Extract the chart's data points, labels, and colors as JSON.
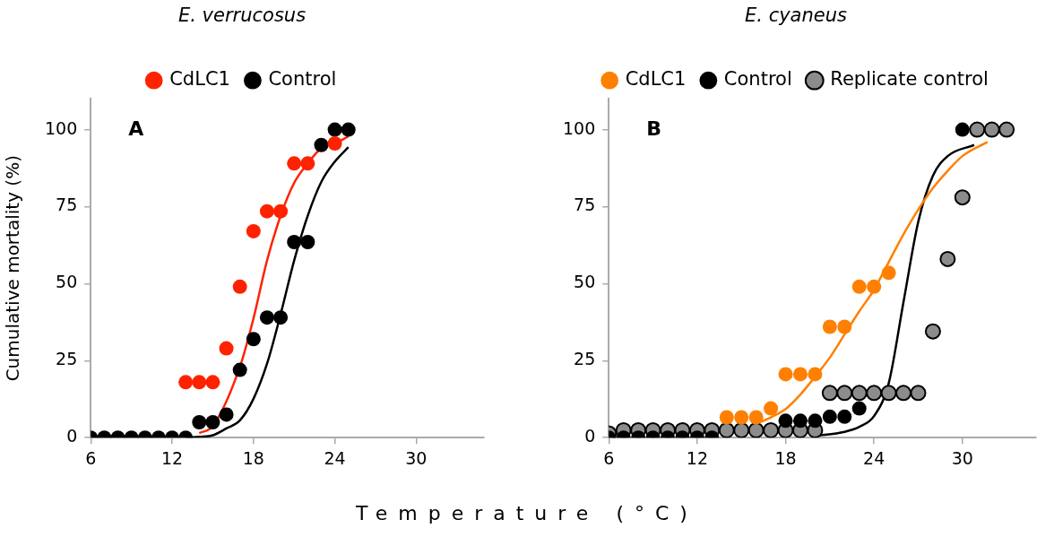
{
  "chart_data": [
    {
      "type": "scatter",
      "title": "E. verrucosus",
      "ylabel": "Cumulative mortality (%)",
      "xlabel": "Temperature (°C)",
      "annotations": [
        "A"
      ],
      "legend": "top",
      "grid": false,
      "marker": "circle",
      "xlim": [
        6,
        35
      ],
      "xticks": [
        6,
        12,
        18,
        24,
        30
      ],
      "ylim": [
        0,
        110
      ],
      "yticks": [
        0,
        25,
        50,
        75,
        100
      ],
      "series": [
        {
          "name": "CdLC1",
          "color": "#ff2200",
          "x": [
            13,
            14,
            15,
            16,
            17,
            18,
            19,
            20,
            21,
            22,
            24
          ],
          "values": [
            18,
            18,
            18,
            29,
            49,
            67,
            73.5,
            73.5,
            89,
            89,
            95.5
          ]
        },
        {
          "name": "Control",
          "color": "#000000",
          "x": [
            6,
            7,
            8,
            9,
            10,
            11,
            12,
            13,
            14,
            15,
            16,
            17,
            18,
            19,
            20,
            21,
            22,
            23,
            24,
            25
          ],
          "values": [
            0,
            0,
            0,
            0,
            0,
            0,
            0,
            0,
            5,
            5,
            7.5,
            22,
            32,
            39,
            39,
            63.5,
            63.5,
            95,
            100,
            100
          ]
        },
        {
          "type": "line",
          "color": "#ff2200",
          "marker": "none",
          "x": [
            14,
            15,
            17,
            18,
            19,
            20,
            21,
            22,
            23,
            24,
            25
          ],
          "values": [
            1.5,
            3.8,
            23,
            38.7,
            57.5,
            72,
            82.7,
            89,
            94,
            95.5,
            97.8
          ]
        },
        {
          "type": "line",
          "color": "#000000",
          "marker": "none",
          "x": [
            13,
            14,
            15,
            16,
            17,
            18,
            19,
            20,
            21,
            22,
            23,
            24,
            25
          ],
          "values": [
            0,
            0.3,
            0.8,
            3,
            5.6,
            12.6,
            24,
            40,
            57.5,
            72,
            83,
            89.6,
            94.3
          ]
        }
      ]
    },
    {
      "type": "scatter",
      "title": "E. cyaneus",
      "annotations": [
        "B"
      ],
      "legend": "top",
      "grid": false,
      "marker": "circle",
      "xlim": [
        6,
        35
      ],
      "xticks": [
        6,
        12,
        18,
        24,
        30
      ],
      "ylim": [
        0,
        110
      ],
      "yticks": [
        0,
        25,
        50,
        75,
        100
      ],
      "series": [
        {
          "name": "CdLC1",
          "color": "#ff8000",
          "x": [
            14,
            15,
            16,
            17,
            18,
            19,
            20,
            21,
            22,
            23,
            24,
            25
          ],
          "values": [
            6.6,
            6.6,
            6.6,
            9.5,
            20.6,
            20.6,
            20.6,
            36,
            36,
            49,
            49,
            53.5
          ]
        },
        {
          "name": "Control",
          "color": "#000000",
          "x": [
            6,
            7,
            8,
            9,
            10,
            11,
            12,
            13,
            18,
            19,
            20,
            21,
            22,
            23,
            30
          ],
          "values": [
            0,
            0,
            0,
            0,
            0,
            0,
            0,
            0,
            5.5,
            5.5,
            5.5,
            6.8,
            6.8,
            9.5,
            100
          ]
        },
        {
          "name": "Replicate control",
          "color": "#8c8c8c",
          "x": [
            6,
            7,
            8,
            9,
            10,
            11,
            12,
            13,
            14,
            15,
            16,
            17,
            18,
            19,
            20,
            21,
            22,
            23,
            24,
            25,
            26,
            27,
            28,
            29,
            30,
            31,
            32,
            33
          ],
          "values": [
            1.4,
            2.4,
            2.4,
            2.4,
            2.4,
            2.4,
            2.4,
            2.4,
            2.4,
            2.4,
            2.4,
            2.4,
            2.4,
            2.4,
            2.4,
            14.5,
            14.5,
            14.5,
            14.5,
            14.5,
            14.5,
            14.5,
            34.5,
            58,
            78,
            100,
            100,
            100
          ]
        },
        {
          "type": "line",
          "color": "#ff8000",
          "marker": "none",
          "x": [
            16,
            17,
            18,
            19,
            20,
            21,
            22,
            23,
            24,
            25,
            26,
            27,
            28,
            29,
            30,
            31.7
          ],
          "values": [
            4.5,
            6.6,
            9.3,
            14,
            19.8,
            26,
            33.5,
            41,
            48,
            57,
            66,
            74,
            81,
            86.6,
            91.4,
            96
          ]
        },
        {
          "type": "line",
          "color": "#000000",
          "marker": "none",
          "x": [
            20,
            22,
            23,
            24,
            25,
            26,
            27,
            28,
            29,
            30.8
          ],
          "values": [
            0.6,
            1.9,
            3.5,
            7,
            17.7,
            44,
            70,
            85,
            91.4,
            95
          ]
        }
      ]
    }
  ]
}
